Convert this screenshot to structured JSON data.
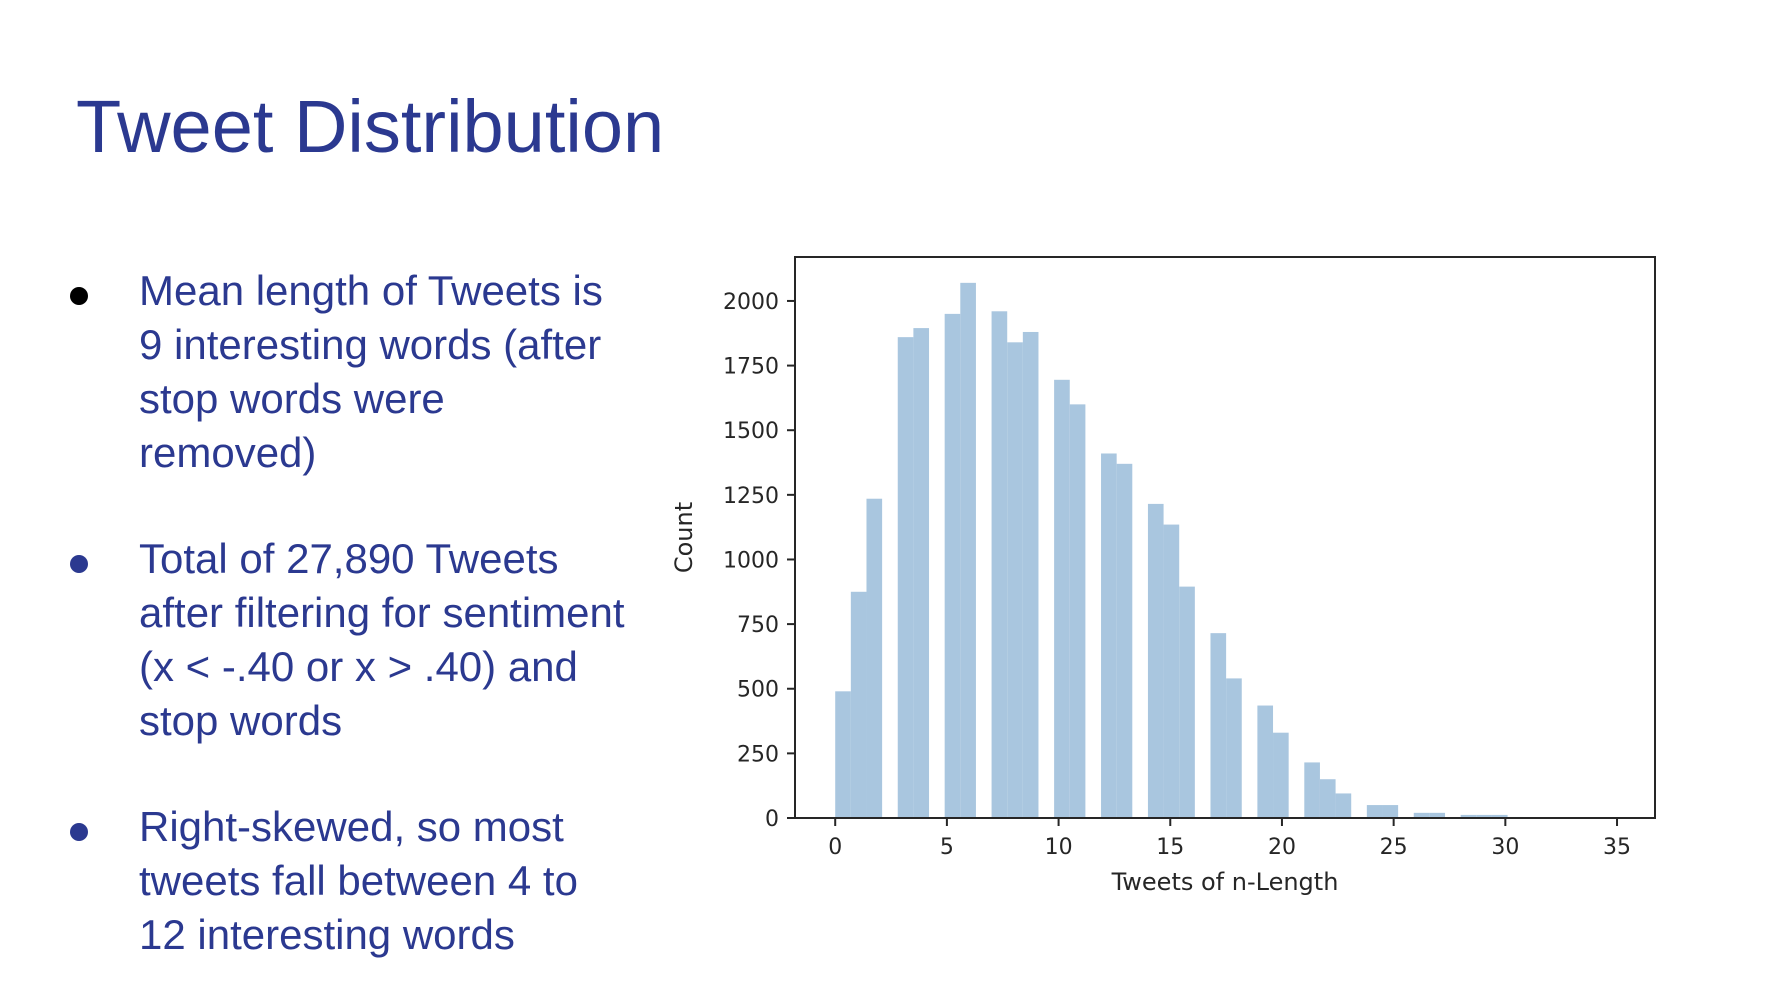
{
  "slide": {
    "title": "Tweet Distribution",
    "bullets": [
      {
        "text": "Mean length of Tweets is 9 interesting words (after stop words were removed)",
        "dot_color": "#000000"
      },
      {
        "text": "Total of 27,890 Tweets after filtering for sentiment (x < -.40 or x > .40) and stop words",
        "dot_color": "#2b3990"
      },
      {
        "text": "Right-skewed, so most tweets fall between 4 to 12 interesting words",
        "dot_color": "#2b3990"
      }
    ]
  },
  "colors": {
    "title": "#2b3990",
    "text": "#2b3990",
    "bar": "#a9c6df",
    "axis": "#262626"
  },
  "chart_data": {
    "type": "bar",
    "title": "",
    "xlabel": "Tweets of n-Length",
    "ylabel": "Count",
    "xlim": [
      -1.8,
      36.7
    ],
    "ylim": [
      0,
      2170
    ],
    "xticks": [
      0,
      5,
      10,
      15,
      20,
      25,
      30,
      35
    ],
    "yticks": [
      0,
      250,
      500,
      750,
      1000,
      1250,
      1500,
      1750,
      2000
    ],
    "bin_width": 0.7,
    "bins": [
      {
        "x": 0.0,
        "count": 490
      },
      {
        "x": 0.7,
        "count": 875
      },
      {
        "x": 1.4,
        "count": 1235
      },
      {
        "x": 2.1,
        "count": 0
      },
      {
        "x": 2.8,
        "count": 1860
      },
      {
        "x": 3.5,
        "count": 1895
      },
      {
        "x": 4.2,
        "count": 0
      },
      {
        "x": 4.9,
        "count": 1950
      },
      {
        "x": 5.6,
        "count": 2070
      },
      {
        "x": 6.3,
        "count": 0
      },
      {
        "x": 7.0,
        "count": 1960
      },
      {
        "x": 7.7,
        "count": 1840
      },
      {
        "x": 8.4,
        "count": 1880
      },
      {
        "x": 9.1,
        "count": 0
      },
      {
        "x": 9.8,
        "count": 1695
      },
      {
        "x": 10.5,
        "count": 1600
      },
      {
        "x": 11.2,
        "count": 0
      },
      {
        "x": 11.9,
        "count": 1410
      },
      {
        "x": 12.6,
        "count": 1370
      },
      {
        "x": 13.3,
        "count": 0
      },
      {
        "x": 14.0,
        "count": 1215
      },
      {
        "x": 14.7,
        "count": 1135
      },
      {
        "x": 15.4,
        "count": 895
      },
      {
        "x": 16.1,
        "count": 0
      },
      {
        "x": 16.8,
        "count": 715
      },
      {
        "x": 17.5,
        "count": 540
      },
      {
        "x": 18.2,
        "count": 0
      },
      {
        "x": 18.9,
        "count": 435
      },
      {
        "x": 19.6,
        "count": 330
      },
      {
        "x": 20.3,
        "count": 0
      },
      {
        "x": 21.0,
        "count": 215
      },
      {
        "x": 21.7,
        "count": 150
      },
      {
        "x": 22.4,
        "count": 95
      },
      {
        "x": 23.1,
        "count": 0
      },
      {
        "x": 23.8,
        "count": 50
      },
      {
        "x": 24.5,
        "count": 50
      },
      {
        "x": 25.2,
        "count": 0
      },
      {
        "x": 25.9,
        "count": 20
      },
      {
        "x": 26.6,
        "count": 20
      },
      {
        "x": 27.3,
        "count": 0
      },
      {
        "x": 28.0,
        "count": 12
      },
      {
        "x": 28.7,
        "count": 12
      },
      {
        "x": 29.4,
        "count": 12
      },
      {
        "x": 30.1,
        "count": 4
      },
      {
        "x": 30.8,
        "count": 3
      },
      {
        "x": 31.5,
        "count": 3
      },
      {
        "x": 32.2,
        "count": 2
      },
      {
        "x": 32.9,
        "count": 2
      },
      {
        "x": 33.6,
        "count": 1
      },
      {
        "x": 34.3,
        "count": 1
      }
    ]
  }
}
